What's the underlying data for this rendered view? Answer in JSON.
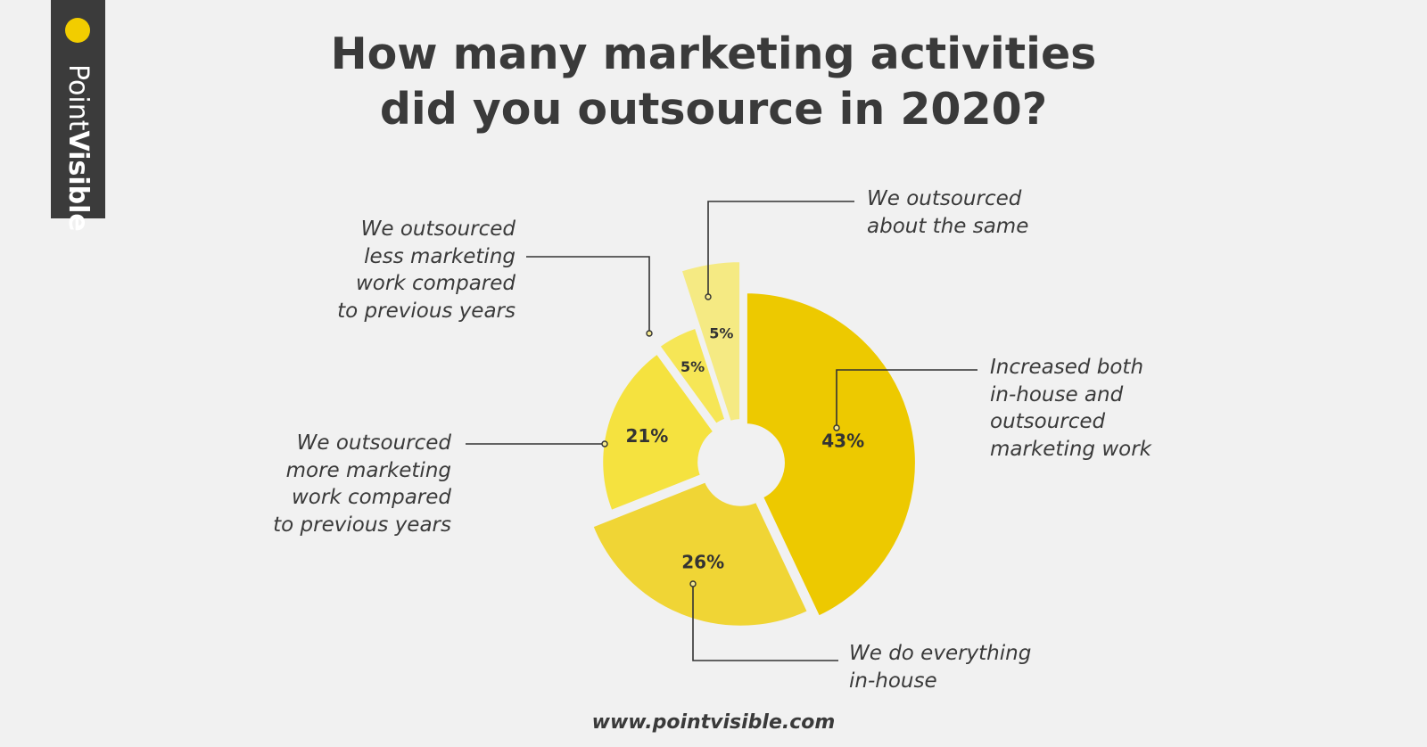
{
  "brand": {
    "name_light": "Point",
    "name_bold": "Visible",
    "accent_color": "#f2cd00"
  },
  "title_lines": [
    "How many marketing activities",
    "did you outsource in 2020?"
  ],
  "footer": "www.pointvisible.com",
  "chart_data": {
    "type": "pie",
    "title": "How many marketing activities did you outsource in 2020?",
    "style": "donut with exploded slices",
    "slices": [
      {
        "label": "Increased both in-house and outsourced marketing work",
        "label_lines": [
          "Increased both",
          "in-house and",
          "outsourced",
          "marketing work"
        ],
        "value": 43,
        "value_label": "43%",
        "color": "#edc900"
      },
      {
        "label": "We do everything in-house",
        "label_lines": [
          "We do everything",
          "in-house"
        ],
        "value": 26,
        "value_label": "26%",
        "color": "#f0d535"
      },
      {
        "label": "We outsourced more marketing work compared to previous years",
        "label_lines": [
          "We outsourced",
          "more marketing",
          "work compared",
          "to previous years"
        ],
        "value": 21,
        "value_label": "21%",
        "color": "#f5e23f"
      },
      {
        "label": "We outsourced less marketing work compared to previous years",
        "label_lines": [
          "We outsourced",
          "less marketing",
          "work compared",
          "to previous years"
        ],
        "value": 5,
        "value_label": "5%",
        "color": "#f6e656"
      },
      {
        "label": "We outsourced about the same",
        "label_lines": [
          "We outsourced",
          "about the same"
        ],
        "value": 5,
        "value_label": "5%",
        "color": "#f5ea83"
      }
    ]
  }
}
